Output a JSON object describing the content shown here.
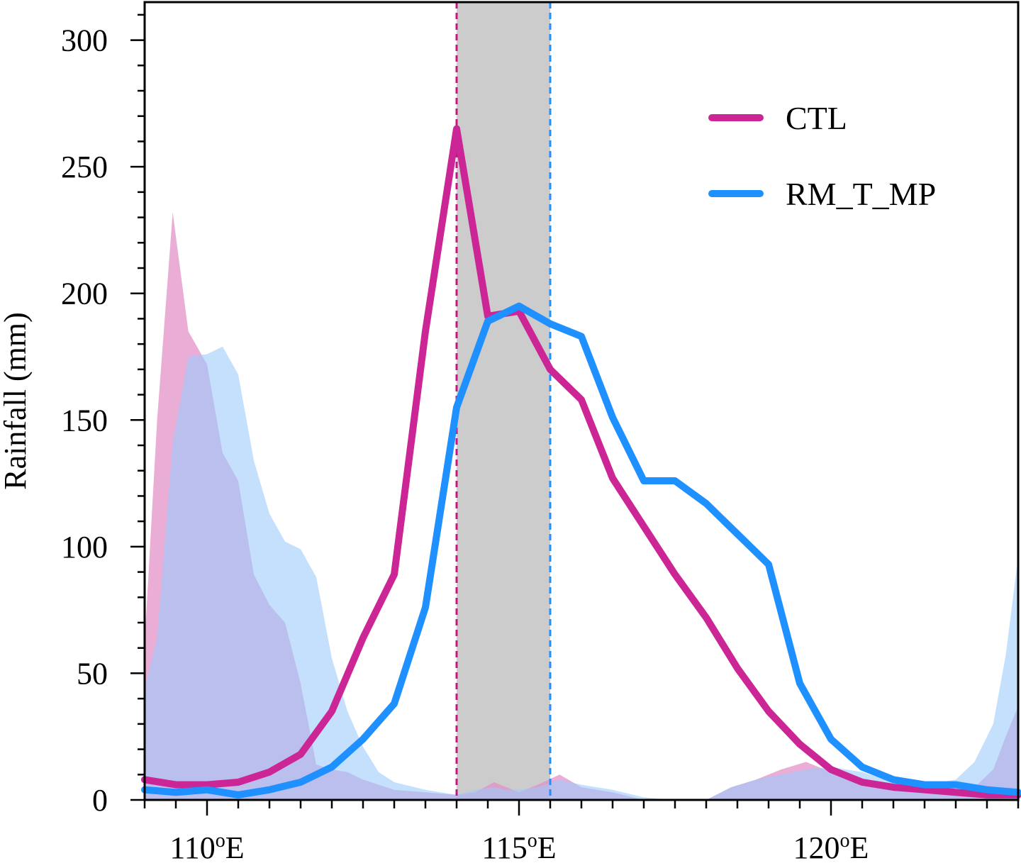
{
  "chart_data": {
    "type": "line",
    "title": "",
    "xlabel": "",
    "ylabel": "Rainfall (mm)",
    "xlim": [
      109.0,
      123.0
    ],
    "ylim": [
      0,
      315
    ],
    "x_ticks": [
      {
        "value": 110,
        "label": "110",
        "sup": "o",
        "suffix": "E"
      },
      {
        "value": 115,
        "label": "115",
        "sup": "o",
        "suffix": "E"
      },
      {
        "value": 120,
        "label": "120",
        "sup": "o",
        "suffix": "E"
      }
    ],
    "y_ticks": [
      {
        "value": 0,
        "label": "0"
      },
      {
        "value": 50,
        "label": "50"
      },
      {
        "value": 100,
        "label": "100"
      },
      {
        "value": 150,
        "label": "150"
      },
      {
        "value": 200,
        "label": "200"
      },
      {
        "value": 250,
        "label": "250"
      },
      {
        "value": 300,
        "label": "300"
      }
    ],
    "shaded_band": {
      "x_start": 114.0,
      "x_end": 115.5,
      "color": "#cccccc"
    },
    "reference_lines": [
      {
        "x": 114.0,
        "color": "#c71585",
        "style": "dashed"
      },
      {
        "x": 115.5,
        "color": "#1e90ff",
        "style": "dashed"
      }
    ],
    "legend": {
      "placement": "top-right",
      "entries": [
        {
          "label": "CTL",
          "color": "#cc2595"
        },
        {
          "label": "RM_T_MP",
          "color": "#1e90ff"
        }
      ]
    },
    "series": [
      {
        "name": "CTL",
        "color": "#cc2595",
        "x": [
          109.0,
          109.5,
          110.0,
          110.5,
          111.0,
          111.5,
          112.0,
          112.5,
          113.0,
          113.5,
          114.0,
          114.5,
          115.0,
          115.5,
          116.0,
          116.5,
          117.0,
          117.5,
          118.0,
          118.5,
          119.0,
          119.5,
          120.0,
          120.5,
          121.0,
          121.5,
          122.0,
          122.5,
          123.0
        ],
        "y": [
          8,
          6,
          6,
          7,
          11,
          18,
          35,
          64,
          89,
          185,
          265,
          191,
          193,
          170,
          158,
          127,
          108,
          89,
          72,
          52,
          35,
          22,
          12,
          7,
          5,
          4,
          3,
          2,
          2
        ]
      },
      {
        "name": "RM_T_MP",
        "color": "#1e90ff",
        "x": [
          109.0,
          109.5,
          110.0,
          110.5,
          111.0,
          111.5,
          112.0,
          112.5,
          113.0,
          113.5,
          114.0,
          114.5,
          115.0,
          115.5,
          116.0,
          116.5,
          117.0,
          117.5,
          118.0,
          118.5,
          119.0,
          119.5,
          120.0,
          120.5,
          121.0,
          121.5,
          122.0,
          122.5,
          123.0
        ],
        "y": [
          4,
          3,
          4,
          2,
          4,
          7,
          13,
          24,
          38,
          76,
          155,
          189,
          195,
          188,
          183,
          151,
          126,
          126,
          117,
          105,
          93,
          46,
          24,
          13,
          8,
          6,
          6,
          4,
          3
        ]
      }
    ],
    "area_series": [
      {
        "name": "CTL (shaded)",
        "color": "#e18ec6",
        "x": [
          109.0,
          109.2,
          109.45,
          109.7,
          110.0,
          110.25,
          110.5,
          110.75,
          111.0,
          111.25,
          111.5,
          111.75,
          112.0,
          112.25,
          112.5,
          112.75,
          113.0,
          113.5,
          114.0,
          114.3,
          114.6,
          114.8,
          115.0,
          115.3,
          115.65,
          116.0,
          116.5,
          117.0,
          117.5,
          118.0,
          118.4,
          118.8,
          119.2,
          119.6,
          120.0,
          120.5,
          121.0,
          121.5,
          122.0,
          122.3,
          122.6,
          122.8,
          123.0
        ],
        "y": [
          62,
          150,
          232,
          185,
          172,
          137,
          126,
          89,
          77,
          70,
          46,
          14,
          12,
          11,
          8,
          6,
          4,
          3,
          2,
          3,
          7,
          5,
          3,
          6,
          10,
          5,
          3,
          0,
          0,
          0,
          5,
          8,
          12,
          15,
          11,
          7,
          4,
          3,
          3,
          5,
          12,
          25,
          37
        ]
      },
      {
        "name": "RM_T_MP (shaded)",
        "color": "#9dccfb",
        "x": [
          109.0,
          109.2,
          109.45,
          109.7,
          110.0,
          110.25,
          110.5,
          110.75,
          111.0,
          111.25,
          111.5,
          111.75,
          112.0,
          112.25,
          112.5,
          112.75,
          113.0,
          113.5,
          114.0,
          114.3,
          114.6,
          114.8,
          115.0,
          115.3,
          115.65,
          116.0,
          116.5,
          117.0,
          117.5,
          118.0,
          118.4,
          118.8,
          119.2,
          119.6,
          120.0,
          120.5,
          121.0,
          121.5,
          122.0,
          122.3,
          122.6,
          122.8,
          123.0
        ],
        "y": [
          44,
          64,
          141,
          175,
          176,
          179,
          168,
          134,
          113,
          102,
          99,
          88,
          56,
          35,
          21,
          11,
          7,
          4,
          2,
          4,
          5,
          4,
          4,
          5,
          8,
          6,
          4,
          1,
          0,
          0,
          5,
          8,
          10,
          12,
          13,
          11,
          7,
          6,
          8,
          15,
          30,
          57,
          96
        ]
      }
    ]
  }
}
